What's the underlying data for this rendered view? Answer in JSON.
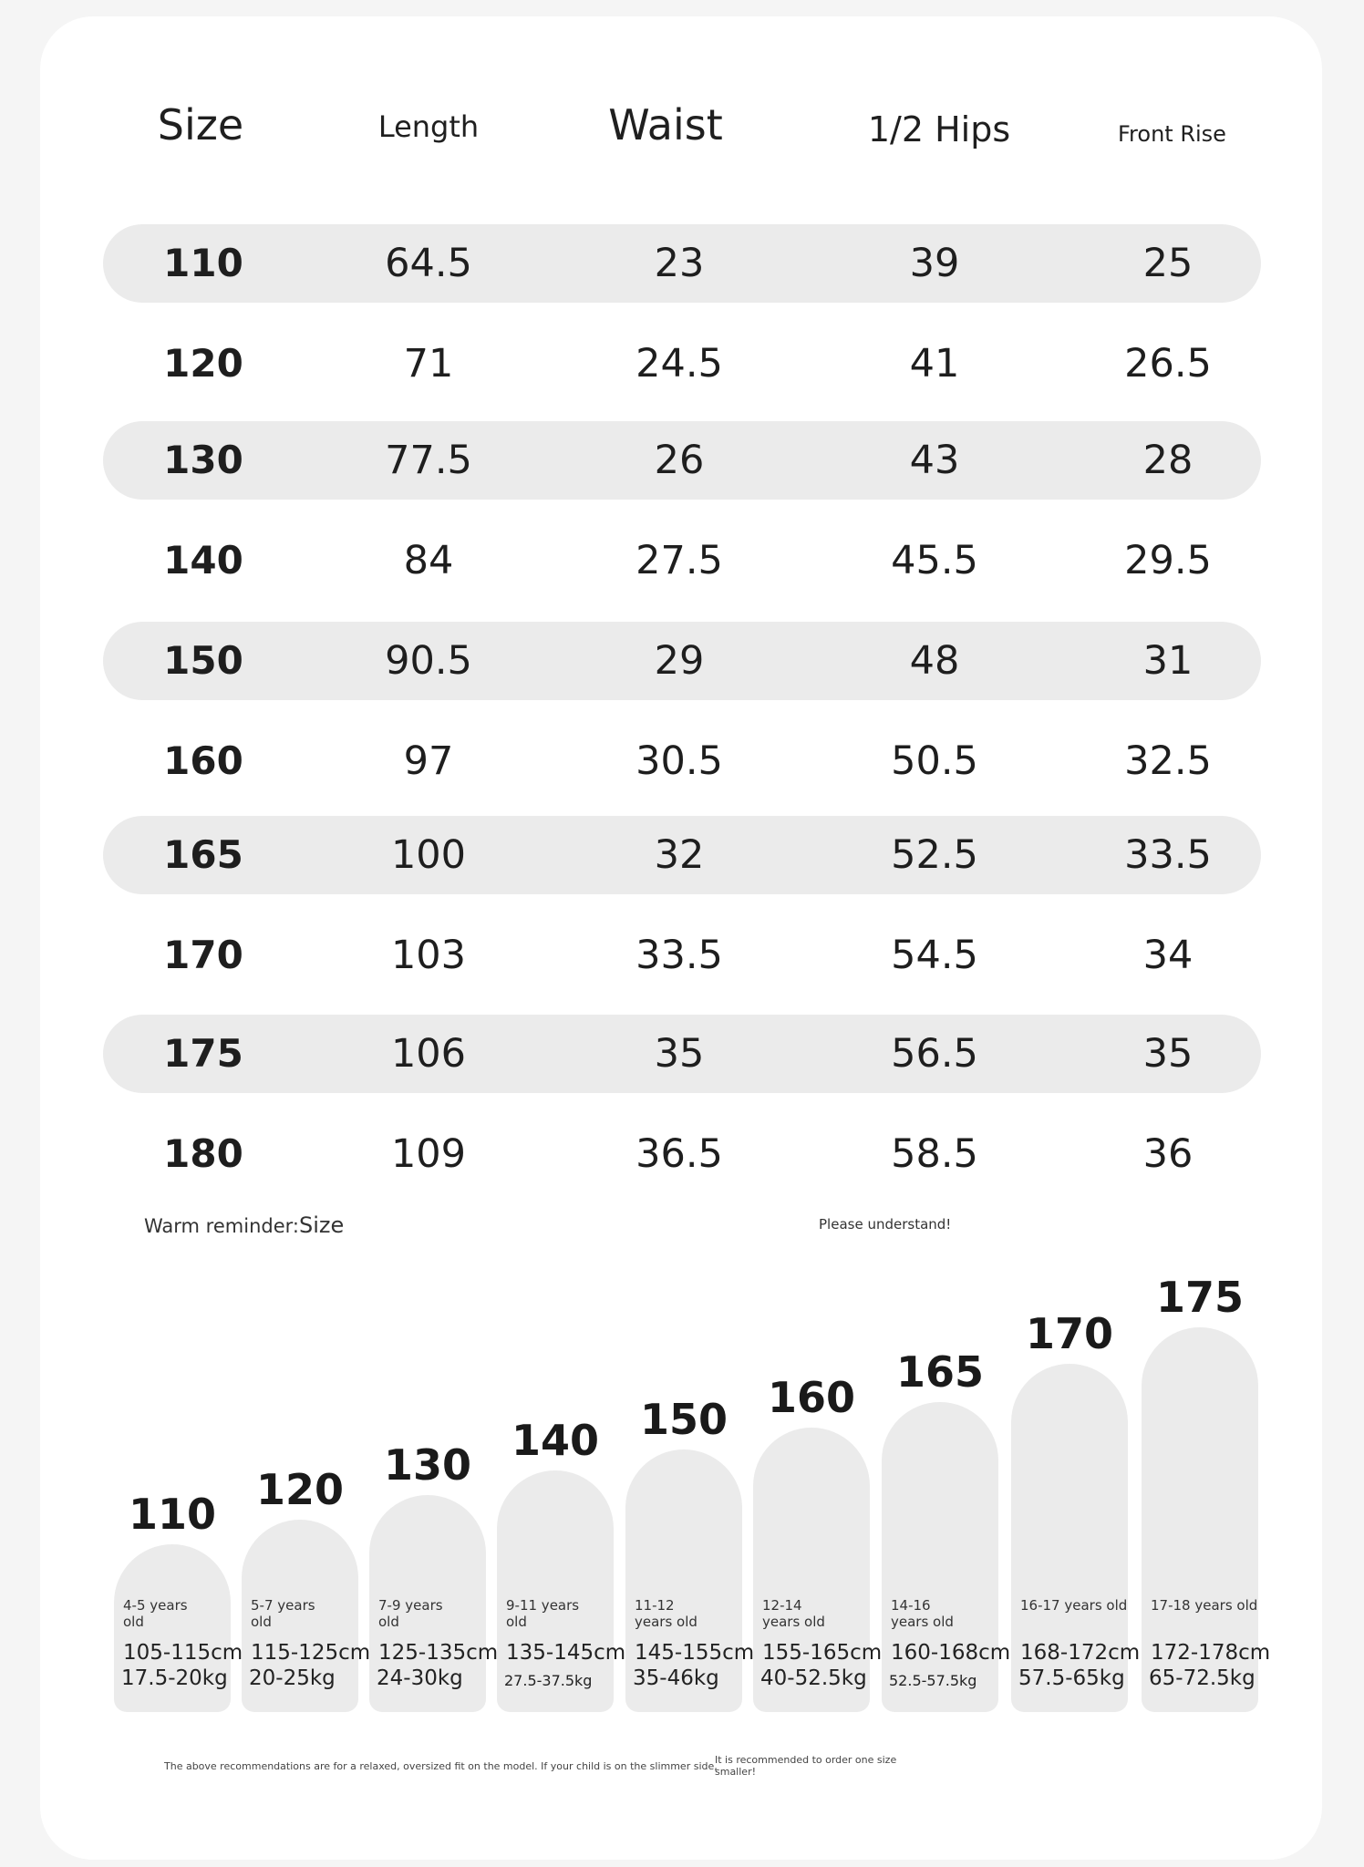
{
  "headers": {
    "size": "Size",
    "length": "Length",
    "waist": "Waist",
    "hips": "1/2 Hips",
    "front_rise": "Front Rise"
  },
  "rows": [
    {
      "size": "110",
      "length": "64.5",
      "waist": "23",
      "hips": "39",
      "rise": "25"
    },
    {
      "size": "120",
      "length": "71",
      "waist": "24.5",
      "hips": "41",
      "rise": "26.5"
    },
    {
      "size": "130",
      "length": "77.5",
      "waist": "26",
      "hips": "43",
      "rise": "28"
    },
    {
      "size": "140",
      "length": "84",
      "waist": "27.5",
      "hips": "45.5",
      "rise": "29.5"
    },
    {
      "size": "150",
      "length": "90.5",
      "waist": "29",
      "hips": "48",
      "rise": "31"
    },
    {
      "size": "160",
      "length": "97",
      "waist": "30.5",
      "hips": "50.5",
      "rise": "32.5"
    },
    {
      "size": "165",
      "length": "100",
      "waist": "32",
      "hips": "52.5",
      "rise": "33.5"
    },
    {
      "size": "170",
      "length": "103",
      "waist": "33.5",
      "hips": "54.5",
      "rise": "34"
    },
    {
      "size": "175",
      "length": "106",
      "waist": "35",
      "hips": "56.5",
      "rise": "35"
    },
    {
      "size": "180",
      "length": "109",
      "waist": "36.5",
      "hips": "58.5",
      "rise": "36"
    }
  ],
  "notes": {
    "reminder": "Warm reminder:",
    "reminder_size": "Size",
    "understand": "Please understand!"
  },
  "guide": [
    {
      "size": "110",
      "age": "4-5 years old",
      "height": "105-115cm",
      "weight": "17.5-20kg"
    },
    {
      "size": "120",
      "age": "5-7 years old",
      "height": "115-125cm",
      "weight": "20-25kg"
    },
    {
      "size": "130",
      "age": "7-9 years old",
      "height": "125-135cm",
      "weight": "24-30kg"
    },
    {
      "size": "140",
      "age": "9-11 years old",
      "height": "135-145cm",
      "weight": "27.5-37.5kg"
    },
    {
      "size": "150",
      "age": "11-12 years old",
      "height": "145-155cm",
      "weight": "35-46kg"
    },
    {
      "size": "160",
      "age": "12-14 years old",
      "height": "155-165cm",
      "weight": "40-52.5kg"
    },
    {
      "size": "165",
      "age": "14-16 years old",
      "height": "160-168cm",
      "weight": "52.5-57.5kg"
    },
    {
      "size": "170",
      "age": "16-17 years old",
      "height": "168-172cm",
      "weight": "57.5-65kg"
    },
    {
      "size": "175",
      "age": "17-18 years old",
      "height": "172-178cm",
      "weight": "65-72.5kg"
    }
  ],
  "footer": {
    "left": "The above recommendations are for a relaxed, oversized fit on the model. If your child is on the slimmer side,",
    "right": "It is recommended to order one size smaller!"
  }
}
